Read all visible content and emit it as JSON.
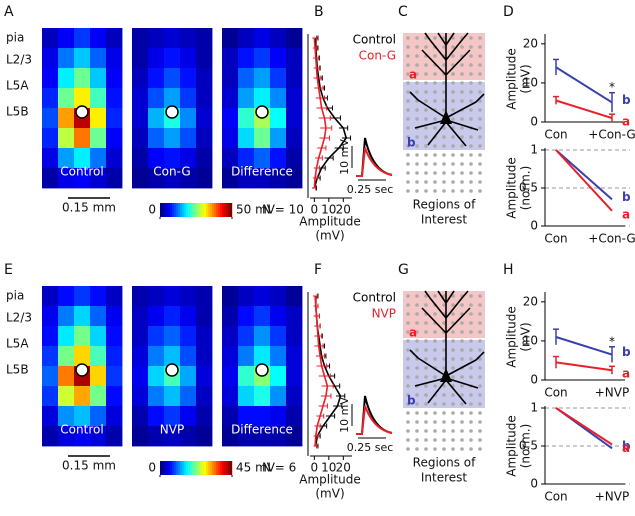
{
  "chart_data": [
    {
      "type": "heatmap",
      "label": "A",
      "layers": [
        "pia",
        "L2/3",
        "L5A",
        "L5B"
      ],
      "maps": [
        {
          "name": "Control",
          "values": [
            [
              3,
              6,
              9,
              6,
              3
            ],
            [
              5,
              12,
              16,
              11,
              5
            ],
            [
              6,
              18,
              24,
              16,
              6
            ],
            [
              8,
              24,
              32,
              22,
              7
            ],
            [
              10,
              36,
              47,
              32,
              8
            ],
            [
              8,
              28,
              38,
              24,
              6
            ],
            [
              5,
              14,
              18,
              12,
              4
            ],
            [
              2,
              5,
              6,
              4,
              2
            ]
          ]
        },
        {
          "name": "Con-G",
          "values": [
            [
              2,
              3,
              4,
              3,
              2
            ],
            [
              2,
              5,
              7,
              5,
              2
            ],
            [
              3,
              7,
              10,
              7,
              3
            ],
            [
              4,
              10,
              14,
              9,
              3
            ],
            [
              4,
              15,
              20,
              13,
              4
            ],
            [
              3,
              11,
              14,
              10,
              3
            ],
            [
              2,
              6,
              7,
              5,
              2
            ],
            [
              1,
              2,
              3,
              2,
              1
            ]
          ]
        },
        {
          "name": "Difference",
          "values": [
            [
              1,
              3,
              5,
              3,
              1
            ],
            [
              3,
              7,
              9,
              6,
              3
            ],
            [
              3,
              11,
              14,
              9,
              3
            ],
            [
              4,
              14,
              18,
              13,
              4
            ],
            [
              6,
              21,
              27,
              19,
              4
            ],
            [
              5,
              17,
              24,
              14,
              3
            ],
            [
              3,
              8,
              11,
              7,
              2
            ],
            [
              1,
              3,
              3,
              2,
              1
            ]
          ]
        }
      ],
      "scale_bar": "0.15 mm",
      "clim": [
        0,
        50
      ],
      "cticks": [
        0,
        {
          "value": 50,
          "label": "50 mV"
        }
      ],
      "n_label": "N = 10"
    },
    {
      "type": "profile",
      "label": "B",
      "xlim": [
        -3,
        26
      ],
      "xticks": [
        0,
        10,
        20
      ],
      "xlabel": [
        "Amplitude",
        "(mV)"
      ],
      "series": [
        {
          "name": "Control",
          "color": "#000000",
          "values": [
            1,
            1,
            1.5,
            2,
            3,
            4,
            6,
            9,
            14,
            20,
            22,
            17,
            10,
            5,
            2,
            0
          ],
          "errors": [
            1.5,
            1.5,
            2,
            2,
            2.5,
            3,
            3,
            3.5,
            4,
            3,
            3,
            3,
            3,
            2.5,
            2,
            1.5
          ]
        },
        {
          "name": "Con-G",
          "color": "#e8202a",
          "values": [
            0,
            0.5,
            1,
            1.5,
            2,
            3,
            4,
            5,
            7,
            8,
            7,
            5,
            3,
            1.5,
            0.5,
            0
          ],
          "errors": [
            1.5,
            1.5,
            2,
            2,
            2.5,
            3,
            3,
            3.5,
            4,
            4,
            3.5,
            3,
            2.5,
            2,
            1.5,
            1
          ]
        }
      ],
      "inset_labels": [
        "10 mV",
        "0.25 sec"
      ]
    },
    {
      "type": "line",
      "label": "D",
      "categories": [
        "Con",
        "+Con-G"
      ],
      "ylim": [
        0,
        22
      ],
      "yticks": [
        0,
        10,
        20
      ],
      "ylabel": [
        "Amplitude",
        "(mV)"
      ],
      "annotation": "*",
      "series": [
        {
          "name": "b",
          "color": "#3a3fb0",
          "values": [
            14,
            5
          ],
          "errors": [
            2,
            2.5
          ]
        },
        {
          "name": "a",
          "color": "#e8202a",
          "values": [
            5.5,
            1
          ],
          "errors": [
            1,
            1
          ]
        }
      ]
    },
    {
      "type": "line",
      "categories": [
        "Con",
        "+Con-G"
      ],
      "ylim": [
        0,
        1
      ],
      "yticks": [
        0,
        0.5,
        1
      ],
      "grid": true,
      "ylabel": [
        "Amplitude",
        "(norm.)"
      ],
      "series": [
        {
          "name": "b",
          "color": "#3a3fb0",
          "values": [
            1,
            0.35
          ]
        },
        {
          "name": "a",
          "color": "#e8202a",
          "values": [
            1,
            0.2
          ]
        }
      ]
    },
    {
      "type": "heatmap",
      "label": "E",
      "layers": [
        "pia",
        "L2/3",
        "L5A",
        "L5B"
      ],
      "maps": [
        {
          "name": "Control",
          "values": [
            [
              3,
              6,
              8,
              6,
              3
            ],
            [
              5,
              11,
              15,
              10,
              5
            ],
            [
              6,
              16,
              22,
              15,
              6
            ],
            [
              8,
              22,
              30,
              20,
              7
            ],
            [
              10,
              34,
              43,
              30,
              8
            ],
            [
              8,
              26,
              32,
              22,
              6
            ],
            [
              4,
              12,
              14,
              10,
              4
            ],
            [
              2,
              4,
              5,
              4,
              2
            ]
          ]
        },
        {
          "name": "NVP",
          "values": [
            [
              2,
              3,
              4,
              3,
              2
            ],
            [
              3,
              5,
              7,
              5,
              2
            ],
            [
              3,
              8,
              10,
              7,
              3
            ],
            [
              4,
              11,
              14,
              9,
              3
            ],
            [
              5,
              15,
              20,
              13,
              4
            ],
            [
              4,
              11,
              14,
              10,
              3
            ],
            [
              2,
              6,
              8,
              5,
              2
            ],
            [
              1,
              2,
              3,
              2,
              1
            ]
          ]
        },
        {
          "name": "Difference",
          "values": [
            [
              1,
              3,
              4,
              3,
              1
            ],
            [
              2,
              6,
              8,
              5,
              3
            ],
            [
              3,
              8,
              12,
              8,
              3
            ],
            [
              4,
              11,
              16,
              11,
              4
            ],
            [
              5,
              19,
              23,
              17,
              4
            ],
            [
              4,
              15,
              18,
              12,
              3
            ],
            [
              2,
              6,
              6,
              5,
              2
            ],
            [
              1,
              2,
              2,
              2,
              1
            ]
          ]
        }
      ],
      "scale_bar": "0.15 mm",
      "clim": [
        0,
        45
      ],
      "cticks": [
        0,
        {
          "value": 45,
          "label": "45 mV"
        }
      ],
      "n_label": "N = 6"
    },
    {
      "type": "profile",
      "label": "F",
      "xlim": [
        -3,
        26
      ],
      "xticks": [
        0,
        10,
        20
      ],
      "xlabel": [
        "Amplitude",
        "(mV)"
      ],
      "series": [
        {
          "name": "Control",
          "color": "#000000",
          "values": [
            1,
            1,
            1.5,
            2,
            3,
            4,
            5,
            7,
            10,
            14,
            18,
            16,
            11,
            6,
            2,
            1
          ],
          "errors": [
            1.5,
            1.5,
            2,
            2,
            2.5,
            3,
            3,
            3.5,
            4,
            3.5,
            3,
            3,
            3,
            2.5,
            2,
            1.5
          ]
        },
        {
          "name": "NVP",
          "color": "#e8202a",
          "values": [
            0.5,
            1,
            1.5,
            2,
            2.5,
            3,
            4,
            5,
            7,
            9,
            8,
            6,
            4,
            2,
            1,
            0.5
          ],
          "errors": [
            1.5,
            1.5,
            2,
            2,
            2.5,
            3,
            3,
            3.5,
            4,
            4,
            3.5,
            3,
            2.5,
            2,
            1.5,
            1
          ]
        }
      ],
      "inset_labels": [
        "10 mV",
        "0.25 sec"
      ]
    },
    {
      "type": "line",
      "label": "H",
      "categories": [
        "Con",
        "+NVP"
      ],
      "ylim": [
        0,
        22
      ],
      "yticks": [
        0,
        10,
        20
      ],
      "ylabel": [
        "Amplitude",
        "(mV)"
      ],
      "annotation": "*",
      "series": [
        {
          "name": "b",
          "color": "#3a3fb0",
          "values": [
            11,
            6.5
          ],
          "errors": [
            2,
            2
          ]
        },
        {
          "name": "a",
          "color": "#e8202a",
          "values": [
            4.5,
            2.5
          ],
          "errors": [
            1.5,
            1
          ]
        }
      ]
    },
    {
      "type": "line",
      "categories": [
        "Con",
        "+NVP"
      ],
      "ylim": [
        0,
        1
      ],
      "yticks": [
        0,
        0.5,
        1
      ],
      "grid": true,
      "ylabel": [
        "Amplitude",
        "(norm.)"
      ],
      "series": [
        {
          "name": "b",
          "color": "#3a3fb0",
          "values": [
            1,
            0.47
          ]
        },
        {
          "name": "a",
          "color": "#e8202a",
          "values": [
            1,
            0.52
          ]
        }
      ]
    }
  ],
  "diagrams": [
    {
      "label": "C",
      "regions": [
        "a",
        "b"
      ],
      "caption": [
        "Regions of",
        "Interest"
      ]
    },
    {
      "label": "G",
      "regions": [
        "a",
        "b"
      ],
      "caption": [
        "Regions of",
        "Interest"
      ]
    }
  ]
}
